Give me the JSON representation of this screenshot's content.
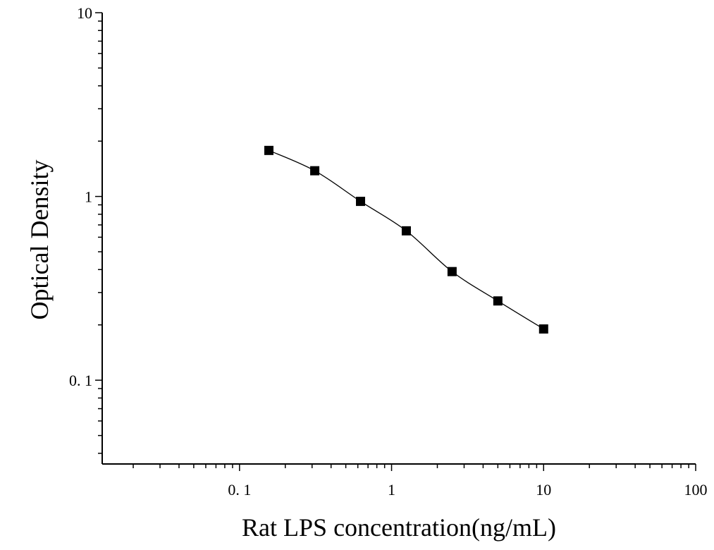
{
  "chart_data": {
    "type": "scatter",
    "title": "",
    "xlabel": "Rat LPS concentration(ng/mL)",
    "ylabel": "Optical Density",
    "x_scale": "log",
    "y_scale": "log",
    "xlim": [
      0.0125,
      100
    ],
    "ylim": [
      0.035,
      10
    ],
    "x_ticks": [
      {
        "value": 0.1,
        "label": "0. 1"
      },
      {
        "value": 1,
        "label": "1"
      },
      {
        "value": 10,
        "label": "10"
      },
      {
        "value": 100,
        "label": "100"
      }
    ],
    "y_ticks": [
      {
        "value": 0.1,
        "label": "0. 1"
      },
      {
        "value": 1,
        "label": "1"
      },
      {
        "value": 10,
        "label": "10"
      }
    ],
    "grid": false,
    "legend": "none",
    "series": [
      {
        "x": [
          0.156,
          0.3125,
          0.625,
          1.25,
          2.5,
          5,
          10
        ],
        "y": [
          1.78,
          1.38,
          0.94,
          0.65,
          0.39,
          0.27,
          0.19
        ],
        "marker": "square",
        "color": "#000000",
        "fit_curve": true
      }
    ]
  }
}
